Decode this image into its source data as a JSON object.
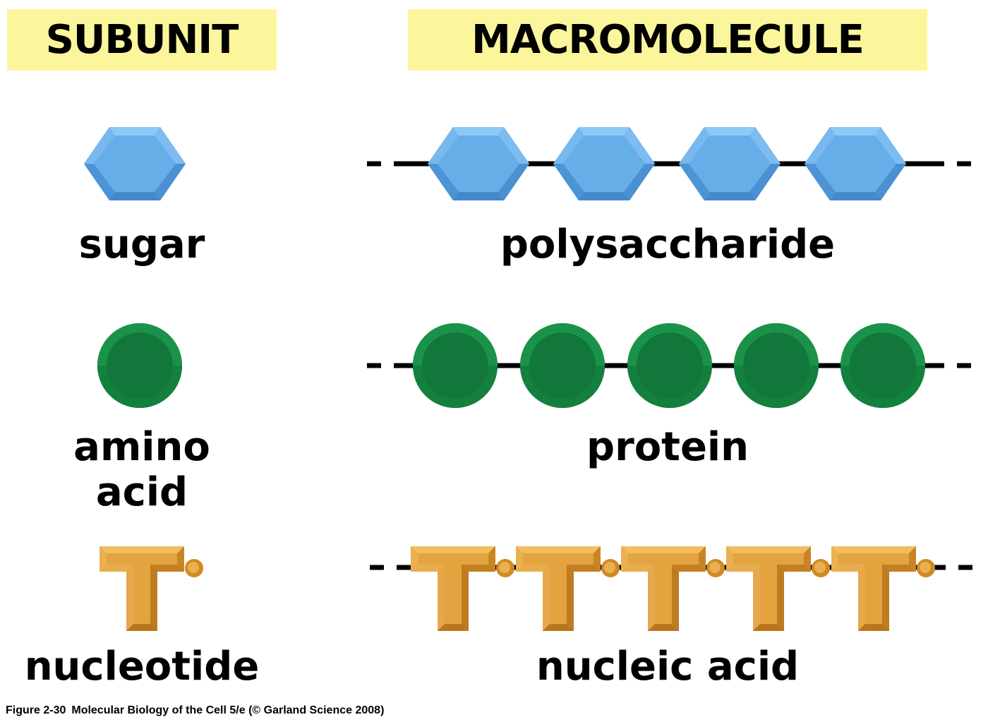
{
  "headers": {
    "subunit": "SUBUNIT",
    "macromolecule": "MACROMOLECULE"
  },
  "rows": [
    {
      "subunit_label": "sugar",
      "macromolecule_label": "polysaccharide"
    },
    {
      "subunit_label_line1": "amino",
      "subunit_label_line2": "acid",
      "macromolecule_label": "protein"
    },
    {
      "subunit_label": "nucleotide",
      "macromolecule_label": "nucleic acid"
    }
  ],
  "caption": {
    "figure": "Figure 2-30",
    "text": "Molecular Biology of the Cell 5/e (© Garland Science 2008)"
  },
  "colors": {
    "header_fill": "#fbf69c",
    "sugar": "#66aee8",
    "amino_acid": "#12773a",
    "nucleotide": "#e3a33f"
  }
}
